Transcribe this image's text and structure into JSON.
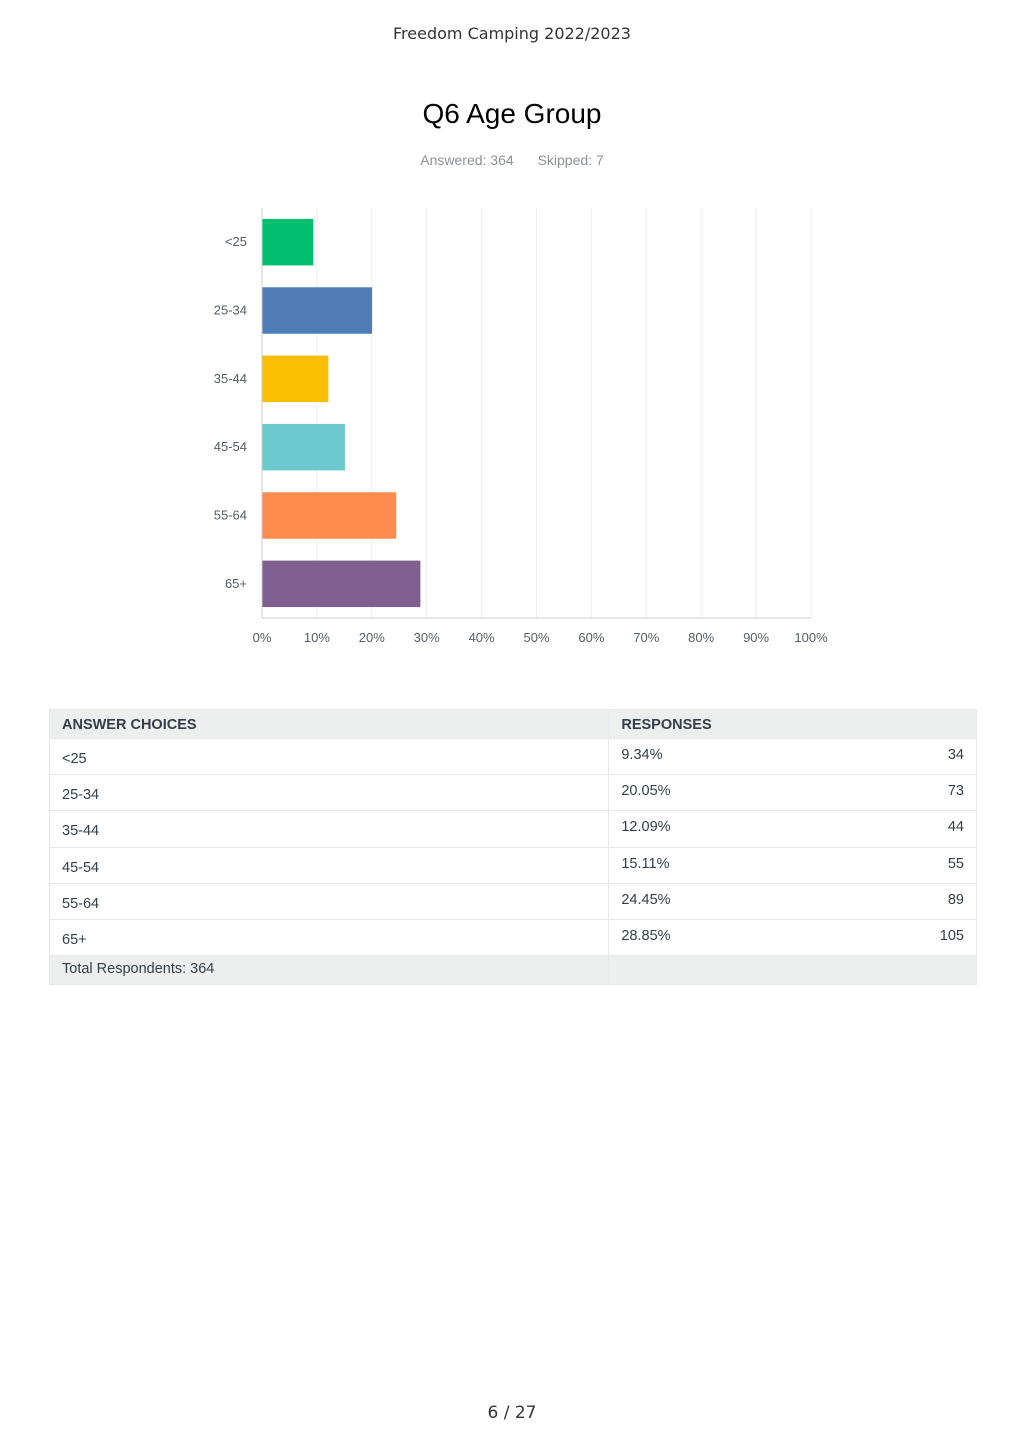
{
  "header": {
    "doc_title": "Freedom Camping 2022/2023"
  },
  "question": {
    "title": "Q6 Age Group",
    "answered_label": "Answered: 364",
    "skipped_label": "Skipped: 7"
  },
  "chart_data": {
    "type": "bar",
    "orientation": "horizontal",
    "categories": [
      "<25",
      "25-34",
      "35-44",
      "45-54",
      "55-64",
      "65+"
    ],
    "values": [
      9.34,
      20.05,
      12.09,
      15.11,
      24.45,
      28.85
    ],
    "colors": [
      "#00bf6f",
      "#507cb6",
      "#f9be00",
      "#6bc8cd",
      "#ff8b4f",
      "#7f5f90"
    ],
    "xlim": [
      0,
      100
    ],
    "xticks": [
      0,
      10,
      20,
      30,
      40,
      50,
      60,
      70,
      80,
      90,
      100
    ],
    "xtick_labels": [
      "0%",
      "10%",
      "20%",
      "30%",
      "40%",
      "50%",
      "60%",
      "70%",
      "80%",
      "90%",
      "100%"
    ],
    "grid": true,
    "title": "",
    "xlabel": "",
    "ylabel": ""
  },
  "table": {
    "col_choice": "ANSWER CHOICES",
    "col_responses": "RESPONSES",
    "rows": [
      {
        "choice": "<25",
        "pct": "9.34%",
        "count": "34"
      },
      {
        "choice": "25-34",
        "pct": "20.05%",
        "count": "73"
      },
      {
        "choice": "35-44",
        "pct": "12.09%",
        "count": "44"
      },
      {
        "choice": "45-54",
        "pct": "15.11%",
        "count": "55"
      },
      {
        "choice": "55-64",
        "pct": "24.45%",
        "count": "89"
      },
      {
        "choice": "65+",
        "pct": "28.85%",
        "count": "105"
      }
    ],
    "total_label": "Total Respondents: 364"
  },
  "footer": {
    "page": "6 / 27"
  }
}
